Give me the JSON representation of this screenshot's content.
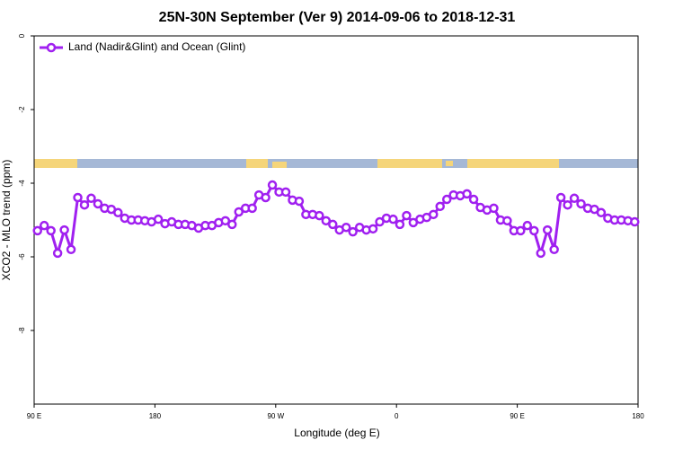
{
  "chart_data": {
    "type": "line",
    "title": "25N-30N September (Ver 9)   2014-09-06 to 2018-12-31",
    "xlabel": "Longitude (deg E)",
    "ylabel": "XCO2 - MLO trend (ppm)",
    "xlim": [
      90,
      540
    ],
    "ylim": [
      -10,
      0
    ],
    "xticks": [
      {
        "value": 90,
        "label": "90 E"
      },
      180,
      {
        "value": 270,
        "label": "90 W"
      },
      {
        "value": 360,
        "label": "0"
      },
      {
        "value": 450,
        "label": "90 E"
      },
      {
        "value": 540,
        "label": "180"
      }
    ],
    "yticks": [
      0,
      -2,
      -4,
      -6,
      -8
    ],
    "legend": "top-left",
    "x": [
      92.5,
      97.5,
      102.5,
      107.5,
      112.5,
      117.5,
      122.5,
      127.5,
      132.5,
      137.5,
      142.5,
      147.5,
      152.5,
      157.5,
      162.5,
      167.5,
      172.5,
      177.5,
      182.5,
      187.5,
      192.5,
      197.5,
      202.5,
      207.5,
      212.5,
      217.5,
      222.5,
      227.5,
      232.5,
      237.5,
      242.5,
      247.5,
      252.5,
      257.5,
      262.5,
      267.5,
      272.5,
      277.5,
      282.5,
      287.5,
      292.5,
      297.5,
      302.5,
      307.5,
      312.5,
      317.5,
      322.5,
      327.5,
      332.5,
      337.5,
      342.5,
      347.5,
      352.5,
      357.5,
      362.5,
      367.5,
      372.5,
      377.5,
      382.5,
      387.5,
      392.5,
      397.5,
      402.5,
      407.5,
      412.5,
      417.5,
      422.5,
      427.5,
      432.5,
      437.5,
      442.5,
      447.5,
      452.5,
      457.5,
      462.5,
      467.5,
      472.5,
      477.5,
      482.5,
      487.5,
      492.5,
      497.5,
      502.5,
      507.5,
      512.5,
      517.5,
      522.5,
      527.5,
      532.5,
      537.5
    ],
    "series": [
      {
        "name": "Land (Nadir&Glint) and Ocean (Glint)",
        "color": "#a020f0",
        "values": [
          -5.29,
          -5.15,
          -5.29,
          -5.9,
          -5.27,
          -5.8,
          -4.39,
          -4.59,
          -4.41,
          -4.56,
          -4.68,
          -4.71,
          -4.8,
          -4.95,
          -5.0,
          -5.0,
          -5.02,
          -5.05,
          -4.98,
          -5.1,
          -5.05,
          -5.12,
          -5.12,
          -5.15,
          -5.22,
          -5.15,
          -5.15,
          -5.07,
          -5.02,
          -5.12,
          -4.78,
          -4.68,
          -4.68,
          -4.32,
          -4.39,
          -4.05,
          -4.24,
          -4.24,
          -4.46,
          -4.49,
          -4.85,
          -4.85,
          -4.88,
          -5.02,
          -5.12,
          -5.27,
          -5.2,
          -5.32,
          -5.2,
          -5.27,
          -5.24,
          -5.05,
          -4.95,
          -4.98,
          -5.12,
          -4.88,
          -5.07,
          -4.98,
          -4.93,
          -4.85,
          -4.63,
          -4.44,
          -4.32,
          -4.34,
          -4.29,
          -4.44,
          -4.66,
          -4.73,
          -4.68,
          -5.0,
          -5.02,
          -5.29,
          -5.29,
          -5.15,
          -5.29,
          -5.9,
          -5.27,
          -5.8,
          -4.39,
          -4.59,
          -4.41,
          -4.56,
          -4.68,
          -4.71,
          -4.8,
          -4.95,
          -5.0,
          -5.0,
          -5.02,
          -5.05
        ]
      }
    ]
  }
}
